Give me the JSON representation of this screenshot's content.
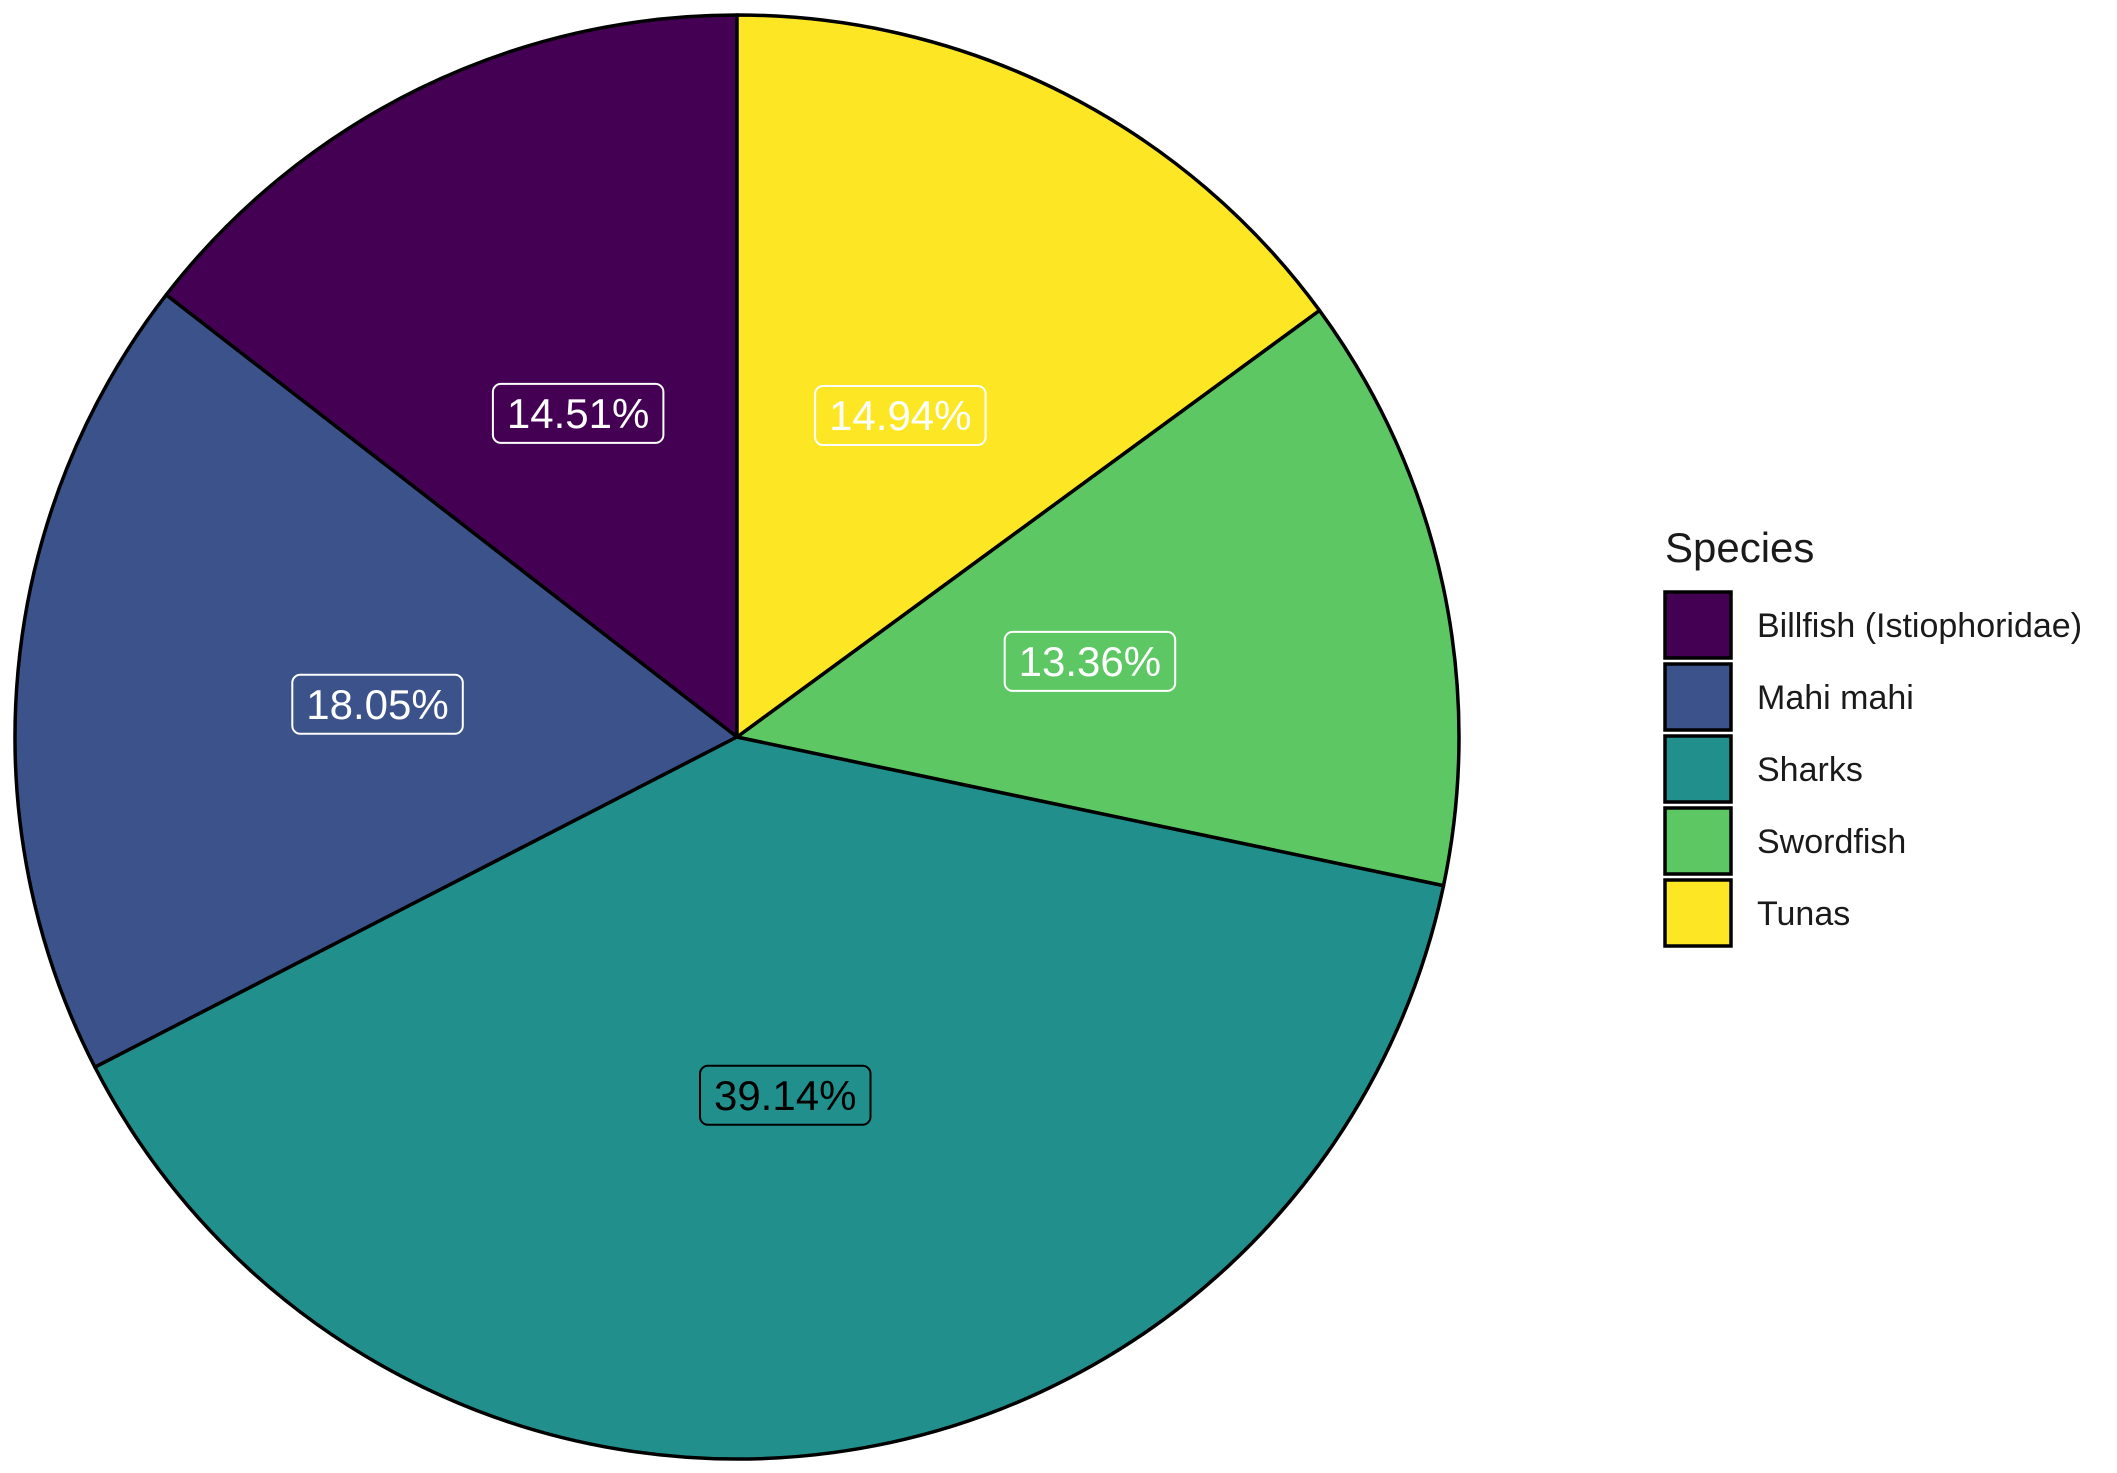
{
  "chart_data": {
    "type": "pie",
    "title": "",
    "slices": [
      {
        "name": "Billfish (Istiophoridae)",
        "value": 14.51,
        "label": "14.51%",
        "color": "#440154",
        "label_color": "#ffffff"
      },
      {
        "name": "Mahi mahi",
        "value": 18.05,
        "label": "18.05%",
        "color": "#3B528B",
        "label_color": "#ffffff"
      },
      {
        "name": "Sharks",
        "value": 39.14,
        "label": "39.14%",
        "color": "#21908C",
        "label_color": "#000000"
      },
      {
        "name": "Swordfish",
        "value": 13.36,
        "label": "13.36%",
        "color": "#5DC863",
        "label_color": "#ffffff"
      },
      {
        "name": "Tunas",
        "value": 14.94,
        "label": "14.94%",
        "color": "#FDE725",
        "label_color": "#ffffff"
      }
    ],
    "direction": "counterclockwise",
    "start": "top",
    "legend": {
      "title": "Species",
      "placement": "right"
    }
  }
}
